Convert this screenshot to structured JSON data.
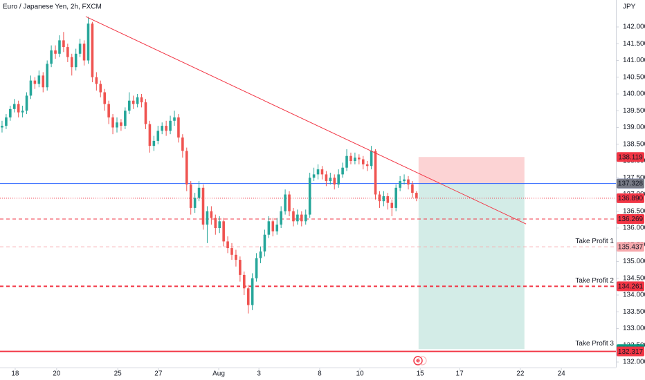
{
  "chart_data": {
    "type": "candlestick",
    "title": "Euro / Japanese Yen, 2h, FXCM",
    "currency": "JPY",
    "up_color": "#26a69a",
    "down_color": "#ef5350",
    "xlim": [
      -0.5,
      149.6
    ],
    "xticks": [
      {
        "value": 3.2,
        "label": "18"
      },
      {
        "value": 13.3,
        "label": "20"
      },
      {
        "value": 28.2,
        "label": "25"
      },
      {
        "value": 38.1,
        "label": "27"
      },
      {
        "value": 52.8,
        "label": "Aug"
      },
      {
        "value": 62.6,
        "label": "3"
      },
      {
        "value": 77.4,
        "label": "8"
      },
      {
        "value": 87.2,
        "label": "10"
      },
      {
        "value": 101.9,
        "label": "15"
      },
      {
        "value": 111.5,
        "label": "17"
      },
      {
        "value": 126.3,
        "label": "22"
      },
      {
        "value": 136.3,
        "label": "24"
      }
    ],
    "ylim": [
      131.835,
      142.804
    ],
    "yticks": [
      {
        "value": 132,
        "label": "132.000"
      },
      {
        "value": 132.5,
        "label": "132.500"
      },
      {
        "value": 133,
        "label": "133.000"
      },
      {
        "value": 133.5,
        "label": "133.500"
      },
      {
        "value": 134,
        "label": "134.000"
      },
      {
        "value": 134.5,
        "label": "134.500"
      },
      {
        "value": 135,
        "label": "135.000"
      },
      {
        "value": 135.5,
        "label": "135.500"
      },
      {
        "value": 136,
        "label": "136.000"
      },
      {
        "value": 136.5,
        "label": "136.500"
      },
      {
        "value": 137,
        "label": "137.000"
      },
      {
        "value": 137.5,
        "label": "137.500"
      },
      {
        "value": 138,
        "label": "138.000"
      },
      {
        "value": 138.5,
        "label": "138.500"
      },
      {
        "value": 139,
        "label": "139.000"
      },
      {
        "value": 139.5,
        "label": "139.500"
      },
      {
        "value": 140,
        "label": "140.000"
      },
      {
        "value": 140.5,
        "label": "140.500"
      },
      {
        "value": 141,
        "label": "141.000"
      },
      {
        "value": 141.5,
        "label": "141.500"
      },
      {
        "value": 142,
        "label": "142.000"
      }
    ],
    "open": [
      139.0,
      139.05,
      139.3,
      139.55,
      139.7,
      139.45,
      139.5,
      139.95,
      140.4,
      140.3,
      140.55,
      140.2,
      140.9,
      141.3,
      141.2,
      141.6,
      141.4,
      141.1,
      140.8,
      141.2,
      141.5,
      141.0,
      142.1,
      140.5,
      140.3,
      140.05,
      139.7,
      139.3,
      139.0,
      139.15,
      139.05,
      139.5,
      139.8,
      139.7,
      139.9,
      139.75,
      139.1,
      138.45,
      138.6,
      138.9,
      139.05,
      138.9,
      139.2,
      139.3,
      138.7,
      138.3,
      137.3,
      136.6,
      136.9,
      137.2,
      136.1,
      136.5,
      136.3,
      136.0,
      136.2,
      135.6,
      135.4,
      135.2,
      135.05,
      134.6,
      134.2,
      133.7,
      134.5,
      135.1,
      135.3,
      135.8,
      136.2,
      135.9,
      136.1,
      136.5,
      137.0,
      136.5,
      136.2,
      136.4,
      136.2,
      136.4,
      137.5,
      137.6,
      137.75,
      137.6,
      137.4,
      137.5,
      137.3,
      137.6,
      137.8,
      138.15,
      138.0,
      138.1,
      138.05,
      137.9,
      137.85,
      138.3,
      137.0,
      136.8,
      136.95,
      136.75,
      136.6,
      137.2,
      137.4,
      137.45,
      137.3,
      137.05
    ],
    "high": [
      139.2,
      139.4,
      139.65,
      139.85,
      139.8,
      139.65,
      140.05,
      140.55,
      140.5,
      140.7,
      140.65,
      141.0,
      141.45,
      141.45,
      141.75,
      141.85,
      141.5,
      141.2,
      141.35,
      141.65,
      141.6,
      142.3,
      142.15,
      140.65,
      140.4,
      140.15,
      139.8,
      139.4,
      139.3,
      139.25,
      139.6,
      140.05,
      139.95,
      140.0,
      140.0,
      139.85,
      139.2,
      138.75,
      139.05,
      139.15,
      139.2,
      139.35,
      139.5,
      139.4,
      138.8,
      138.4,
      137.4,
      137.05,
      137.4,
      137.3,
      136.65,
      136.65,
      136.4,
      136.35,
      136.3,
      135.75,
      135.55,
      135.35,
      135.15,
      134.7,
      134.3,
      134.65,
      135.25,
      135.45,
      135.95,
      136.35,
      136.3,
      136.3,
      136.65,
      137.15,
      137.1,
      136.6,
      136.55,
      136.5,
      136.55,
      137.65,
      137.8,
      137.9,
      137.85,
      137.7,
      137.65,
      137.6,
      137.75,
      137.95,
      138.35,
      138.25,
      138.25,
      138.2,
      138.15,
      138.0,
      138.45,
      138.35,
      137.1,
      137.1,
      137.05,
      136.85,
      137.3,
      137.55,
      137.6,
      137.55,
      137.4,
      137.1
    ],
    "low": [
      138.85,
      138.95,
      139.2,
      139.45,
      139.3,
      139.3,
      139.4,
      139.85,
      140.15,
      140.2,
      140.05,
      140.1,
      140.8,
      141.05,
      141.1,
      141.25,
      140.95,
      140.55,
      140.7,
      141.1,
      140.85,
      140.9,
      140.35,
      140.1,
      139.9,
      139.5,
      139.1,
      138.8,
      138.85,
      138.9,
      138.95,
      139.4,
      139.55,
      139.6,
      139.6,
      138.95,
      138.25,
      138.3,
      138.5,
      138.8,
      138.75,
      138.8,
      139.05,
      138.55,
      138.1,
      137.1,
      136.4,
      136.45,
      136.8,
      135.95,
      135.55,
      136.1,
      135.8,
      135.85,
      135.45,
      135.25,
      135.05,
      134.85,
      134.4,
      134.0,
      133.45,
      133.55,
      134.4,
      134.95,
      135.15,
      135.7,
      135.75,
      135.8,
      136.0,
      136.4,
      136.35,
      136.05,
      136.1,
      136.05,
      136.1,
      136.3,
      137.4,
      137.45,
      137.45,
      137.25,
      137.3,
      137.15,
      137.2,
      137.5,
      137.7,
      137.9,
      137.9,
      137.9,
      137.75,
      137.7,
      137.75,
      136.85,
      136.6,
      136.65,
      136.55,
      136.35,
      136.5,
      137.1,
      137.3,
      137.15,
      136.9,
      136.8
    ],
    "close": [
      139.05,
      139.3,
      139.55,
      139.7,
      139.45,
      139.5,
      139.95,
      140.4,
      140.3,
      140.55,
      140.2,
      140.9,
      141.3,
      141.2,
      141.6,
      141.4,
      141.1,
      140.8,
      141.2,
      141.5,
      141.0,
      142.1,
      140.5,
      140.3,
      140.05,
      139.7,
      139.3,
      139.0,
      139.15,
      139.05,
      139.5,
      139.8,
      139.7,
      139.9,
      139.75,
      139.1,
      138.45,
      138.6,
      138.9,
      139.05,
      138.9,
      139.2,
      139.3,
      138.7,
      138.3,
      137.3,
      136.6,
      136.9,
      137.2,
      136.1,
      136.5,
      136.3,
      136.0,
      136.2,
      135.6,
      135.4,
      135.2,
      135.05,
      134.6,
      134.2,
      133.7,
      134.5,
      135.1,
      135.3,
      135.8,
      136.2,
      135.9,
      136.1,
      136.5,
      137.0,
      136.5,
      136.2,
      136.4,
      136.2,
      136.4,
      137.5,
      137.6,
      137.75,
      137.6,
      137.4,
      137.5,
      137.3,
      137.6,
      137.8,
      138.15,
      138.0,
      138.1,
      138.05,
      137.9,
      137.85,
      138.3,
      137.0,
      136.8,
      136.95,
      136.75,
      136.6,
      137.2,
      137.4,
      137.45,
      137.3,
      137.05,
      136.9
    ],
    "trendline": {
      "x": [
        20.4,
        127.7
      ],
      "y": [
        142.31,
        136.12
      ],
      "color": "#f23645"
    },
    "position": {
      "x": [
        101.5,
        127.3
      ],
      "stop": 138.119,
      "entry": 137.328,
      "target": 132.387,
      "stop_color": "#fcd3d4",
      "target_color": "#d3ece7"
    },
    "price_lines": [
      {
        "value": 138.119,
        "label": "138.119",
        "color": "#f23645",
        "style": "none"
      },
      {
        "value": 137.328,
        "label": "137.328",
        "color": "#2962ff",
        "style": "solid",
        "width": 1
      },
      {
        "value": 137.328,
        "label": "137.328",
        "color": "#787b86",
        "style": "none"
      },
      {
        "value": 136.89,
        "label": "136.890",
        "color": "#f23645",
        "style": "dotted",
        "width": 1
      },
      {
        "value": 136.269,
        "label": "136.269",
        "color": "#f23645",
        "style": "dashed",
        "width": 1
      },
      {
        "value": 135.437,
        "label": "135.437",
        "color": "#f7a9ad",
        "style": "dashed",
        "width": 1,
        "note": "Take Profit 1"
      },
      {
        "value": 134.261,
        "label": "134.261",
        "color": "#f23645",
        "style": "dashed",
        "width": 2,
        "note": "Take Profit 2"
      },
      {
        "value": 132.387,
        "label": "132.387",
        "color": "#089981",
        "style": "none",
        "note": "Take Profit 3"
      },
      {
        "value": 132.317,
        "label": "132.317",
        "color": "#f23645",
        "style": "solid",
        "width": 2
      }
    ]
  }
}
